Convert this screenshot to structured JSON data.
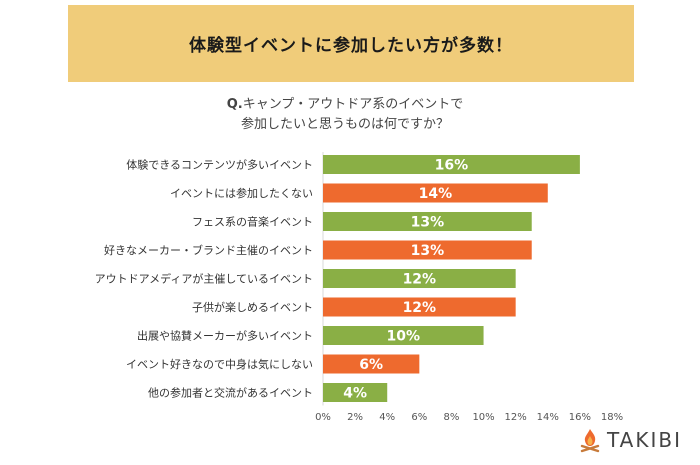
{
  "banner": {
    "title": "体験型イベントに参加したい方が多数！"
  },
  "question": {
    "prefix": "Q.",
    "line1": "キャンプ・アウトドア系のイベントで",
    "line2": "参加したいと思うものは何ですか？"
  },
  "brand": {
    "name": "TAKIBI",
    "icon": "campfire-icon"
  },
  "colors": {
    "green": "#8aaf45",
    "orange": "#ee6a2e",
    "banner": "#f0cc7a"
  },
  "chart_data": {
    "type": "bar",
    "orientation": "horizontal",
    "categories": [
      "体験できるコンテンツが多いイベント",
      "イベントには参加したくない",
      "フェス系の音楽イベント",
      "好きなメーカー・ブランド主催のイベント",
      "アウトドアメディアが主催しているイベント",
      "子供が楽しめるイベント",
      "出展や協賛メーカーが多いイベント",
      "イベント好きなので中身は気にしない",
      "他の参加者と交流があるイベント"
    ],
    "values": [
      16,
      14,
      13,
      13,
      12,
      12,
      10,
      6,
      4
    ],
    "value_labels": [
      "16%",
      "14%",
      "13%",
      "13%",
      "12%",
      "12%",
      "10%",
      "6%",
      "4%"
    ],
    "bar_colors": [
      "green",
      "orange",
      "green",
      "orange",
      "green",
      "orange",
      "green",
      "orange",
      "green"
    ],
    "xticks": [
      "0%",
      "2%",
      "4%",
      "6%",
      "8%",
      "10%",
      "12%",
      "14%",
      "16%",
      "18%"
    ],
    "xlim": [
      0,
      18
    ],
    "grid": false,
    "legend": "none"
  }
}
